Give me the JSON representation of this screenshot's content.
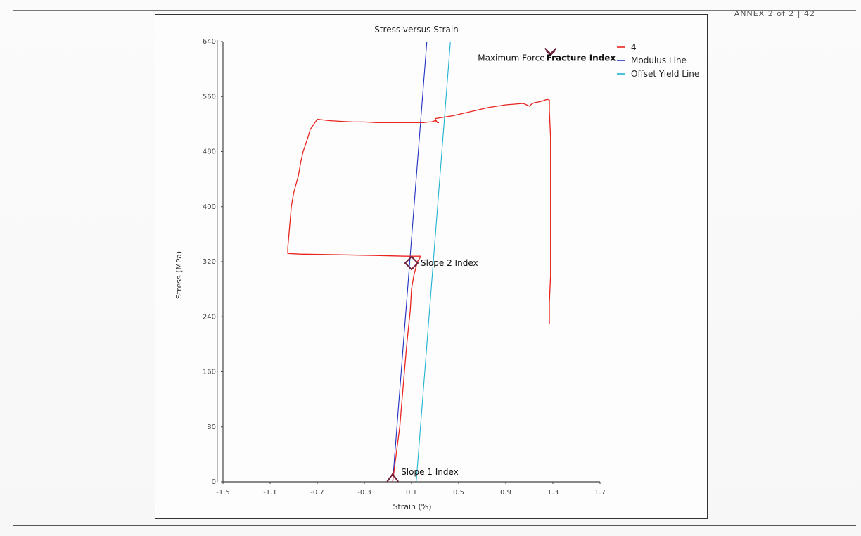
{
  "corner_text": "ANNEX 2 of 2 | 42",
  "chart_data": {
    "type": "line",
    "title": "Stress versus Strain",
    "xlabel": "Strain (%)",
    "ylabel": "Stress (MPa)",
    "xlim": [
      -1.5,
      1.7
    ],
    "ylim": [
      0,
      640
    ],
    "xticks": [
      -1.5,
      -1.1,
      -0.7,
      -0.3,
      0.1,
      0.5,
      0.9,
      1.3,
      1.7
    ],
    "yticks": [
      0,
      80,
      160,
      240,
      320,
      400,
      480,
      560,
      640
    ],
    "xtick_labels": [
      "-1.5",
      "-1.1",
      "-0.7",
      "-0.3",
      "0.1",
      "0.5",
      "0.9",
      "1.3",
      "1.7"
    ],
    "ytick_labels": [
      "0",
      "80",
      "160",
      "240",
      "320",
      "400",
      "480",
      "560",
      "640"
    ],
    "grid": false,
    "legend": "top-right",
    "series": [
      {
        "name": "4",
        "color": "#e8251f",
        "x": [
          -0.06,
          -0.03,
          0.0,
          0.02,
          0.04,
          0.06,
          0.09,
          0.1,
          0.12,
          0.15,
          0.17,
          0.18,
          0.11,
          0.05,
          -0.2,
          -0.5,
          -0.85,
          -0.95,
          -0.95,
          -0.94,
          -0.93,
          -0.92,
          -0.9,
          -0.86,
          -0.84,
          -0.82,
          -0.8,
          -0.78,
          -0.76,
          -0.7,
          -0.6,
          -0.5,
          -0.4,
          -0.3,
          -0.2,
          -0.1,
          0.0,
          0.1,
          0.2,
          0.25,
          0.27,
          0.3,
          0.33,
          0.32,
          0.3,
          0.45,
          0.6,
          0.75,
          0.9,
          1.05,
          1.1,
          1.12,
          1.14,
          1.2,
          1.25,
          1.27,
          1.27,
          1.28,
          1.28,
          1.28,
          1.28,
          1.28,
          1.27,
          1.27
        ],
        "y": [
          0,
          40,
          80,
          120,
          160,
          200,
          250,
          280,
          300,
          320,
          325,
          328,
          328,
          328,
          329,
          330,
          331,
          332,
          340,
          360,
          380,
          400,
          420,
          445,
          465,
          480,
          490,
          500,
          512,
          527,
          525,
          524,
          523,
          523,
          522,
          522,
          522,
          522,
          522,
          523,
          523,
          525,
          522,
          522,
          528,
          532,
          538,
          544,
          548,
          550,
          546,
          549,
          551,
          553,
          556,
          555,
          540,
          500,
          450,
          400,
          350,
          300,
          260,
          230
        ]
      },
      {
        "name": "Modulus Line",
        "color": "#1f2fbf",
        "x": [
          -0.06,
          0.23
        ],
        "y": [
          0,
          640
        ]
      },
      {
        "name": "Offset Yield Line",
        "color": "#1fb3cf",
        "x": [
          0.14,
          0.43
        ],
        "y": [
          0,
          640
        ]
      }
    ],
    "markers": [
      {
        "label": "Slope 1 Index",
        "x": -0.06,
        "y": 0,
        "shape": "triangle"
      },
      {
        "label": "Slope 2 Index",
        "x": 0.1,
        "y": 318,
        "shape": "diamond"
      },
      {
        "label": "Maximum Force",
        "x": 1.28,
        "y": 622,
        "shape": "chevron"
      },
      {
        "label": "Fracture Index",
        "x": 1.28,
        "y": 622,
        "shape": "chevron"
      }
    ]
  }
}
